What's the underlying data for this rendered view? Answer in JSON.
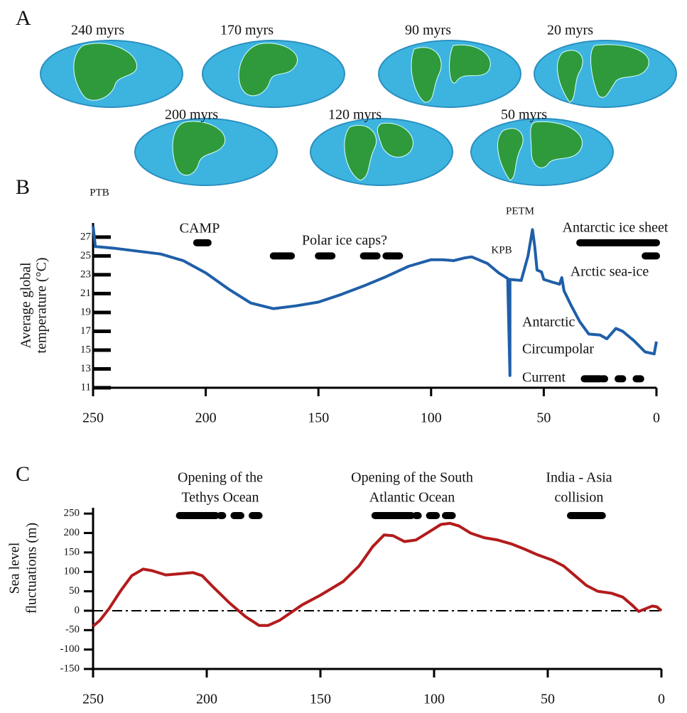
{
  "panel_a": {
    "letter": "A",
    "globes": [
      "240 myrs",
      "170 myrs",
      "90 myrs",
      "20 myrs",
      "200 myrs",
      "120 myrs",
      "50 myrs"
    ]
  },
  "chart_data": [
    {
      "type": "line",
      "panel": "B",
      "y_label": [
        "Average global",
        "temperature (°C)"
      ],
      "x": [
        250,
        249,
        240,
        220,
        210,
        200,
        190,
        180,
        170,
        160,
        150,
        140,
        130,
        120,
        110,
        100,
        95,
        90,
        85,
        82,
        75,
        70,
        66,
        65,
        65,
        60,
        57,
        55,
        54,
        53,
        51,
        50,
        46,
        43,
        42,
        41,
        38,
        34,
        30,
        25,
        22,
        18,
        15,
        10,
        5,
        1,
        0
      ],
      "values": [
        28.2,
        26,
        25.8,
        25.2,
        24.5,
        23.2,
        21.5,
        20,
        19.4,
        19.7,
        20.1,
        20.9,
        21.8,
        22.8,
        23.9,
        24.6,
        24.6,
        24.5,
        24.8,
        24.9,
        24.2,
        23.2,
        22.6,
        12.3,
        22.5,
        22.4,
        25,
        27.8,
        26,
        23.5,
        23.3,
        22.5,
        22.2,
        22,
        22.7,
        21.3,
        19.8,
        18,
        16.7,
        16.6,
        16.2,
        17.3,
        17,
        16,
        14.8,
        14.6,
        15.9
      ],
      "color": "#1f5fa8",
      "xlim": [
        250,
        0
      ],
      "xticks": [
        250,
        200,
        150,
        100,
        50,
        0
      ],
      "ylim": [
        11,
        28.5
      ],
      "yticks": [
        11,
        13,
        15,
        17,
        19,
        21,
        23,
        25,
        27
      ],
      "ranges": [
        {
          "label": [
            "CAMP"
          ],
          "segments": [
            [
              204,
              199
            ]
          ]
        },
        {
          "label": [
            "Polar ice caps?"
          ],
          "segments": [
            [
              170,
              162
            ],
            [
              150,
              144
            ],
            [
              130,
              124
            ],
            [
              120,
              114
            ]
          ]
        },
        {
          "label": [
            "Antarctic ice sheet"
          ],
          "segments": [
            [
              34,
              0
            ]
          ]
        },
        {
          "label": [
            "Arctic sea-ice"
          ],
          "segments": [
            [
              5,
              0
            ]
          ]
        },
        {
          "label": [
            "Antarctic",
            "Circumpolar",
            "Current"
          ],
          "segments": [
            [
              32,
              25
            ],
            [
              24,
              23
            ],
            [
              17,
              15
            ],
            [
              9,
              7
            ]
          ]
        }
      ],
      "annotations": [
        "PTB",
        "KPB",
        "PETM"
      ]
    },
    {
      "type": "line",
      "panel": "C",
      "y_label": [
        "Sea level",
        "fluctuations (m)"
      ],
      "x": [
        250,
        247,
        243,
        238,
        233,
        228,
        224,
        218,
        212,
        206,
        202,
        197,
        190,
        183,
        177,
        173,
        168,
        163,
        158,
        150,
        140,
        133,
        127,
        122,
        118,
        113,
        108,
        103,
        97,
        93,
        89,
        84,
        78,
        72,
        66,
        60,
        55,
        48,
        43,
        38,
        33,
        28,
        22,
        17,
        13,
        10,
        7,
        4,
        2,
        0
      ],
      "values": [
        -40,
        -25,
        5,
        50,
        90,
        107,
        103,
        92,
        95,
        98,
        90,
        60,
        20,
        -15,
        -38,
        -38,
        -25,
        -5,
        15,
        40,
        75,
        115,
        165,
        195,
        193,
        178,
        182,
        200,
        222,
        225,
        218,
        200,
        188,
        182,
        172,
        158,
        145,
        130,
        115,
        90,
        65,
        50,
        45,
        35,
        15,
        -2,
        5,
        12,
        10,
        0
      ],
      "color": "#b31b1b",
      "xlim": [
        250,
        0
      ],
      "xticks": [
        250,
        200,
        150,
        100,
        50,
        0
      ],
      "ylim": [
        -150,
        265
      ],
      "yticks": [
        -150,
        -100,
        -50,
        0,
        50,
        100,
        150,
        200,
        250
      ],
      "zero_line": true,
      "ranges": [
        {
          "label": [
            "Opening of the",
            "Tethys Ocean"
          ],
          "segments": [
            [
              212,
              196
            ],
            [
              194,
              193
            ],
            [
              188,
              185
            ],
            [
              180,
              177
            ]
          ]
        },
        {
          "label": [
            "Opening of the South",
            "Atlantic Ocean"
          ],
          "segments": [
            [
              126,
              110
            ],
            [
              108,
              107
            ],
            [
              102,
              99
            ],
            [
              95,
              92
            ]
          ]
        },
        {
          "label": [
            "India - Asia",
            "collision"
          ],
          "segments": [
            [
              40,
              26
            ]
          ]
        }
      ]
    }
  ]
}
